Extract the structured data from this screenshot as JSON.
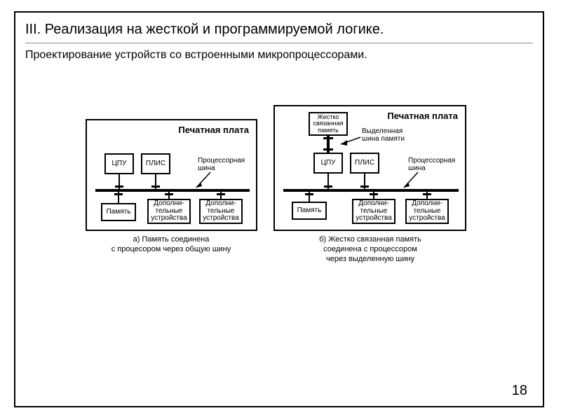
{
  "page_number": "18",
  "title": "III. Реализация на жесткой и программируемой логике.",
  "subtitle": "Проектирование устройств со встроенными микропроцессорами.",
  "colors": {
    "frame": "#000000",
    "background": "#ffffff",
    "rule": "#888888",
    "text": "#000000"
  },
  "panels": {
    "a": {
      "type": "block-diagram",
      "title": "Печатная плата",
      "bus_label": "Процессорная\nшина",
      "caption": "а) Память соединена\nс процесором через общую шину",
      "boxes": {
        "cpu": "ЦПУ",
        "plis": "ПЛИС",
        "memory": "Память",
        "dev1": "Дополни-\nтельные\nустройства",
        "dev2": "Дополни-\nтельные\nустройства"
      }
    },
    "b": {
      "type": "block-diagram",
      "title": "Печатная плата",
      "bus_label": "Процессорная\nшина",
      "dedicated_bus_label": "Выделенная\nшина памяти",
      "tight_mem": "Жестко\nсвязанная\nпамять",
      "caption": "б) Жестко связанная память\nсоединена с процессором\nчерез выделенную шину",
      "boxes": {
        "cpu": "ЦПУ",
        "plis": "ПЛИС",
        "memory": "Память",
        "dev1": "Дополни-\nтельные\nустройства",
        "dev2": "Дополни-\nтельные\nустройства"
      }
    }
  }
}
